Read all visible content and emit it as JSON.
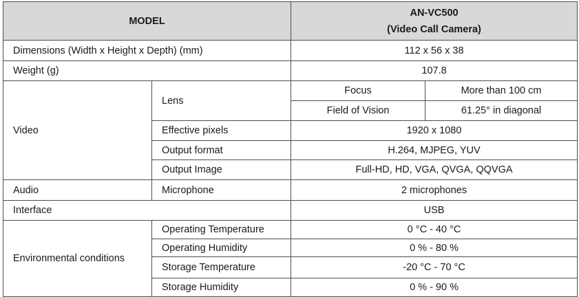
{
  "header": {
    "model_label": "MODEL",
    "model_name": "AN-VC500",
    "model_desc": "(Video Call Camera)"
  },
  "rows": {
    "dimensions": {
      "label": "Dimensions (Width x Height x Depth) (mm)",
      "value": "112 x 56 x 38"
    },
    "weight": {
      "label": "Weight (g)",
      "value": "107.8"
    },
    "video": {
      "label": "Video",
      "lens_label": "Lens",
      "focus_label": "Focus",
      "focus_value": "More than 100 cm",
      "fov_label": "Field of Vision",
      "fov_value": "61.25° in diagonal",
      "pixels_label": "Effective pixels",
      "pixels_value": "1920 x 1080",
      "format_label": "Output format",
      "format_value": "H.264, MJPEG, YUV",
      "image_label": "Output Image",
      "image_value": "Full-HD, HD, VGA, QVGA, QQVGA"
    },
    "audio": {
      "label": "Audio",
      "sub_label": "Microphone",
      "value": "2 microphones"
    },
    "interface": {
      "label": "Interface",
      "value": "USB"
    },
    "environment": {
      "label": "Environmental conditions",
      "op_temp_label": "Operating Temperature",
      "op_temp_value": "0 °C - 40 °C",
      "op_hum_label": "Operating Humidity",
      "op_hum_value": "0 % - 80 %",
      "st_temp_label": "Storage Temperature",
      "st_temp_value": "-20 °C - 70 °C",
      "st_hum_label": "Storage Humidity",
      "st_hum_value": "0 % - 90 %"
    }
  }
}
